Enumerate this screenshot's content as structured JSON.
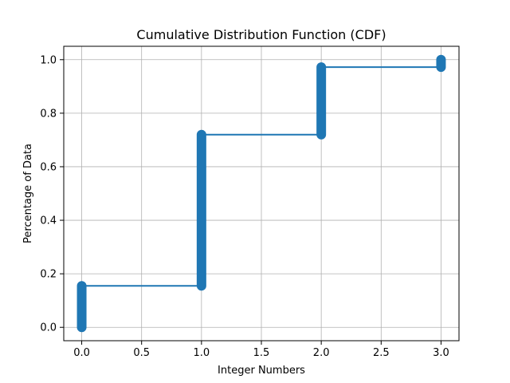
{
  "chart_data": {
    "type": "line",
    "title": "Cumulative Distribution Function (CDF)",
    "xlabel": "Integer Numbers",
    "ylabel": "Percentage of Data",
    "xlim": [
      -0.15,
      3.15
    ],
    "ylim": [
      -0.05,
      1.05
    ],
    "xticks": [
      0.0,
      0.5,
      1.0,
      1.5,
      2.0,
      2.5,
      3.0
    ],
    "xtick_labels": [
      "0.0",
      "0.5",
      "1.0",
      "1.5",
      "2.0",
      "2.5",
      "3.0"
    ],
    "yticks": [
      0.0,
      0.2,
      0.4,
      0.6,
      0.8,
      1.0
    ],
    "ytick_labels": [
      "0.0",
      "0.2",
      "0.4",
      "0.6",
      "0.8",
      "1.0"
    ],
    "grid": true,
    "color": "#1f77b4",
    "series": [
      {
        "steps": [
          {
            "x": 0,
            "y_start": 0.0,
            "y_end": 0.155
          },
          {
            "x": 1,
            "y_start": 0.155,
            "y_end": 0.72
          },
          {
            "x": 2,
            "y_start": 0.72,
            "y_end": 0.972
          },
          {
            "x": 3,
            "y_start": 0.972,
            "y_end": 1.0
          }
        ]
      }
    ]
  }
}
